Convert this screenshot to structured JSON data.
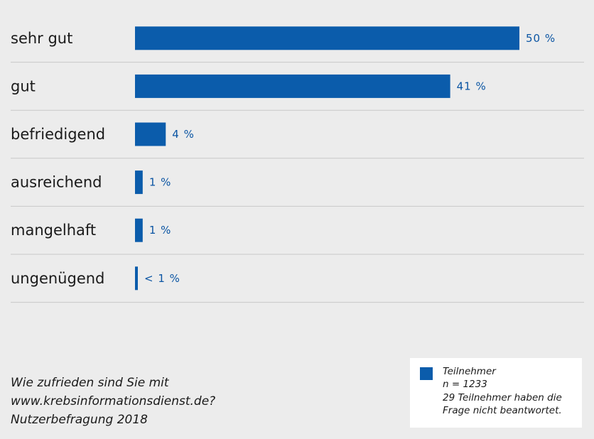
{
  "chart_data": {
    "type": "bar",
    "orientation": "horizontal",
    "categories": [
      "sehr gut",
      "gut",
      "befriedigend",
      "ausreichend",
      "mangelhaft",
      "ungenügend"
    ],
    "values": [
      50,
      41,
      4,
      1,
      1,
      0.3
    ],
    "value_labels": [
      "50 %",
      "41 %",
      "4 %",
      "1 %",
      "1 %",
      "< 1 %"
    ],
    "xlim": [
      0,
      50
    ],
    "grid": "horizontal separators between rows",
    "bar_color": "#0b5cab",
    "caption": [
      "Wie zufrieden sind Sie mit",
      "www.krebsinformationsdienst.de?",
      "Nutzerbefragung 2018"
    ],
    "legend": {
      "placement": "bottom-right",
      "series": "Teilnehmer",
      "n": "n = 1233",
      "note": "29 Teilnehmer haben die Frage nicht beantwortet."
    }
  }
}
